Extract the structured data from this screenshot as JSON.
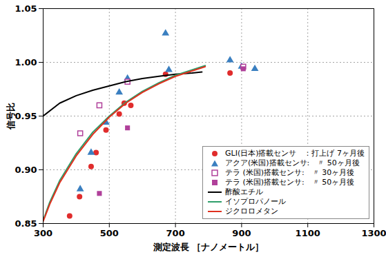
{
  "chart_data": {
    "type": "scatter",
    "x_label": "測定波長 ［ナノメートル］",
    "y_label": "信号比",
    "xlim": [
      300,
      1300
    ],
    "xticks": [
      300,
      500,
      700,
      900,
      1100,
      1300
    ],
    "ylim": [
      0.85,
      1.05
    ],
    "yticks": [
      0.85,
      {
        "value": 0.9,
        "label": "0.90"
      },
      0.95,
      {
        "value": 1.0,
        "label": "1.00"
      },
      1.05
    ],
    "grid": true,
    "legend": "bottom-right",
    "series": [
      {
        "name": "GLI(日本)搭載センサ　：打上げ 7ヶ月後",
        "color": "#e02c2c",
        "marker": "circle",
        "x": [
          380,
          410,
          445,
          460,
          490,
          530,
          545,
          565,
          670,
          865
        ],
        "values": [
          0.857,
          0.875,
          0.903,
          0.916,
          0.937,
          0.952,
          0.962,
          0.96,
          0.989,
          0.99
        ]
      },
      {
        "name": "アクア(米国)搭載センサ:　〃 50ヶ月後",
        "color": "#3a7fc0",
        "marker": "triangle",
        "x": [
          412,
          445,
          490,
          530,
          555,
          670,
          680,
          865,
          900,
          940
        ],
        "values": [
          0.882,
          0.916,
          0.944,
          0.972,
          0.985,
          1.027,
          0.993,
          1.002,
          0.996,
          0.994
        ]
      },
      {
        "name": "テラ (米国)搭載センサ:　〃 30ヶ月後",
        "color": "#b0409a",
        "marker": "open_square",
        "x": [
          412,
          470,
          555,
          905
        ],
        "values": [
          0.934,
          0.96,
          0.982,
          0.996
        ]
      },
      {
        "name": "テラ (米国)搭載センサ:　〃 50ヶ月後",
        "color": "#b0409a",
        "marker": "square",
        "x": [
          470,
          555,
          905
        ],
        "values": [
          0.878,
          0.939,
          0.994
        ]
      },
      {
        "name": "酢酸エチル",
        "color": "#000000",
        "type": "line",
        "line_style": "solid",
        "x": [
          300,
          350,
          400,
          450,
          500,
          550,
          600,
          650,
          700,
          750,
          780
        ],
        "values": [
          0.95,
          0.962,
          0.969,
          0.974,
          0.978,
          0.982,
          0.985,
          0.987,
          0.989,
          0.99,
          0.991
        ]
      },
      {
        "name": "イソプロパノール",
        "color": "#2e9e6a",
        "type": "line",
        "line_style": "solid",
        "x": [
          300,
          320,
          350,
          400,
          450,
          500,
          550,
          600,
          650,
          700,
          750,
          790
        ],
        "values": [
          0.853,
          0.87,
          0.89,
          0.915,
          0.935,
          0.95,
          0.963,
          0.973,
          0.981,
          0.988,
          0.993,
          0.997
        ]
      },
      {
        "name": "ジクロロメタン",
        "color": "#e0301e",
        "type": "line",
        "line_style": "solid",
        "x": [
          300,
          320,
          350,
          400,
          450,
          500,
          550,
          600,
          650,
          700,
          750,
          790
        ],
        "values": [
          0.852,
          0.868,
          0.888,
          0.913,
          0.933,
          0.949,
          0.962,
          0.972,
          0.98,
          0.987,
          0.992,
          0.996
        ]
      }
    ]
  }
}
